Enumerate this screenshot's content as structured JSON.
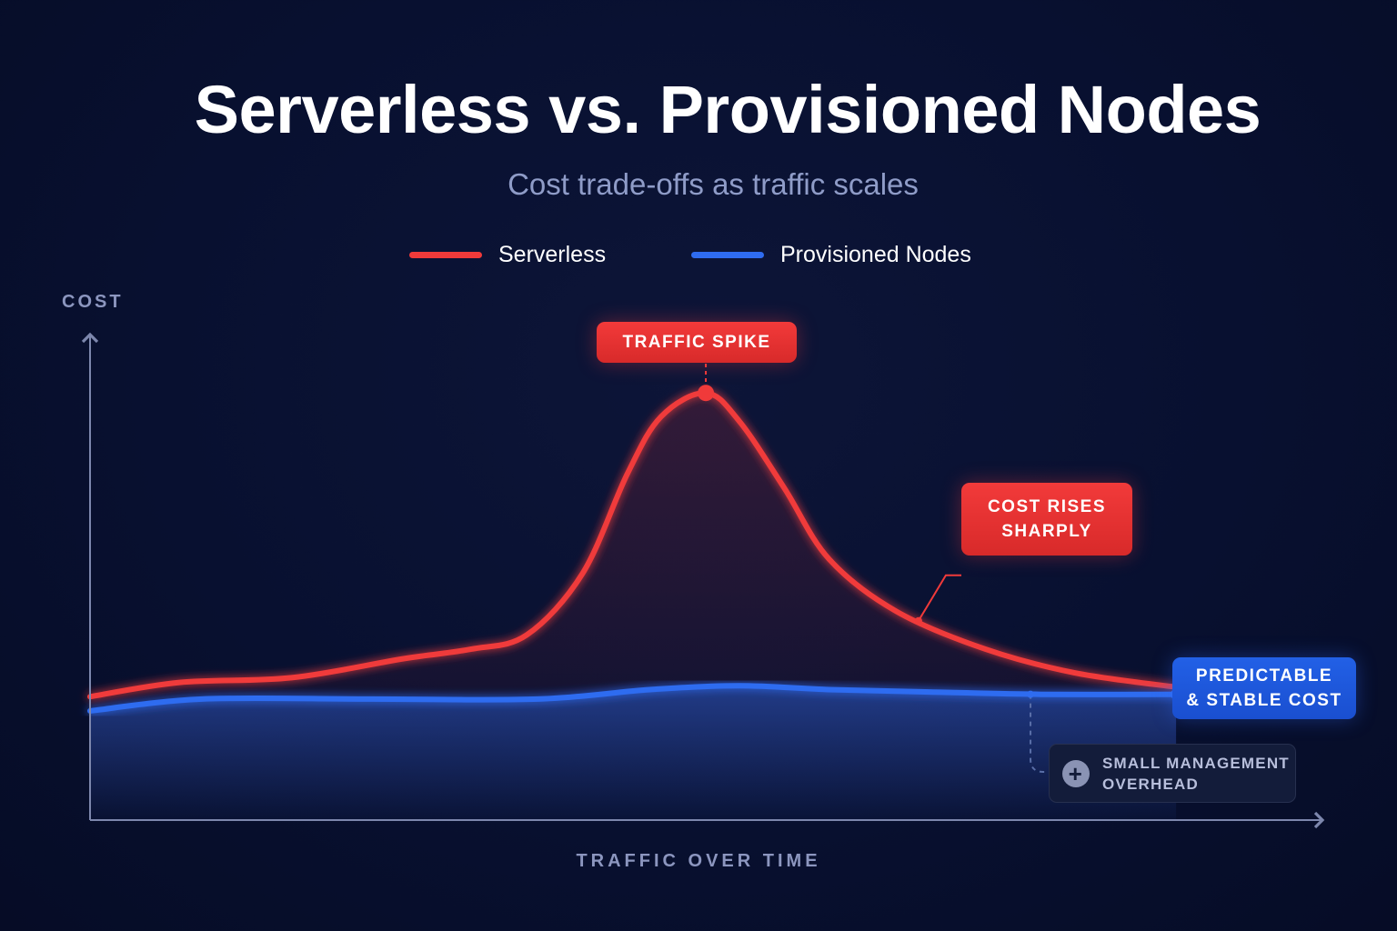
{
  "title": "Serverless vs. Provisioned Nodes",
  "subtitle": "Cost trade-offs as traffic scales",
  "colors": {
    "serverless": "#f03a3a",
    "provisioned": "#2f6cf0",
    "axis": "#7d87ad"
  },
  "icons": {
    "overhead": "plus-circle-icon"
  },
  "chart_data": {
    "type": "line",
    "title": "Serverless vs. Provisioned Nodes",
    "subtitle": "Cost trade-offs as traffic scales",
    "xlabel": "TRAFFIC OVER TIME",
    "ylabel": "COST",
    "xlim": [
      0,
      100
    ],
    "ylim": [
      0,
      100
    ],
    "grid": false,
    "legend_position": "top-center",
    "series": [
      {
        "name": "Serverless",
        "x": [
          0,
          8,
          18,
          28,
          34,
          39,
          44,
          48,
          51,
          55,
          58,
          62,
          66,
          72,
          80,
          88,
          97
        ],
        "y": [
          26,
          29,
          30,
          34,
          36,
          39,
          52,
          73,
          85,
          90,
          84,
          70,
          55,
          44,
          36,
          31,
          28
        ]
      },
      {
        "name": "Provisioned Nodes",
        "x": [
          0,
          10,
          25,
          40,
          50,
          58,
          66,
          75,
          85,
          97
        ],
        "y": [
          23,
          25.5,
          25.5,
          25.5,
          27.5,
          28.3,
          27.5,
          27,
          26.5,
          26.5
        ]
      }
    ],
    "annotations": [
      {
        "text": "TRAFFIC SPIKE",
        "series": "Serverless",
        "x": 55,
        "y": 90
      },
      {
        "text": "COST RISES\nSHARPLY",
        "series": "Serverless",
        "x": 74,
        "y": 42
      },
      {
        "text": "PREDICTABLE\n& STABLE COST",
        "series": "Provisioned Nodes",
        "x": 97,
        "y": 26.5
      },
      {
        "text": "SMALL MANAGEMENT\nOVERHEAD",
        "series": "Provisioned Nodes",
        "x": 84,
        "y": 26.5
      }
    ]
  }
}
